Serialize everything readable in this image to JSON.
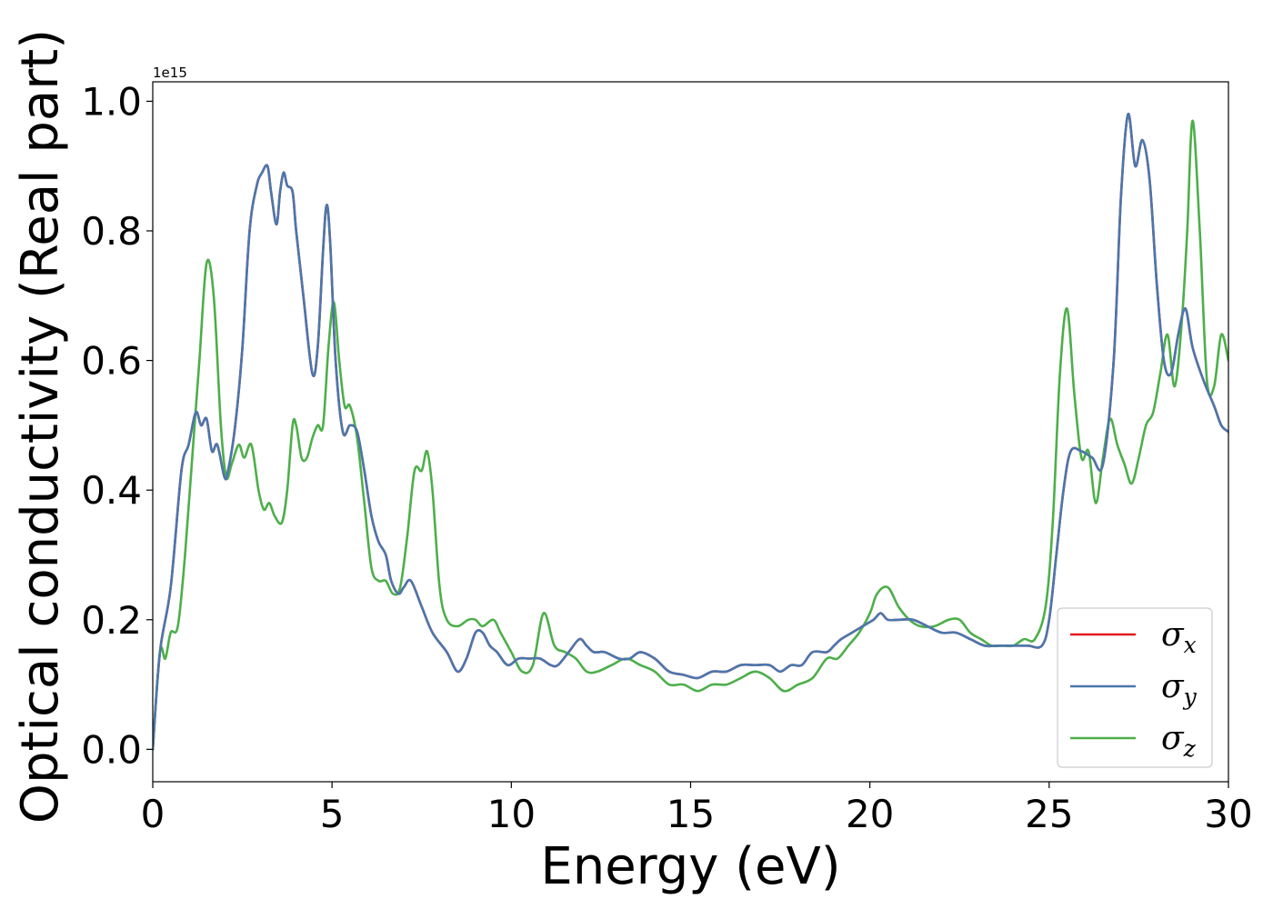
{
  "chart_data": {
    "type": "line",
    "xlabel": "Energy (eV)",
    "ylabel": "Optical conductivity (Real part)",
    "y_offset_text": "1e15",
    "y_scale": 1000000000000000.0,
    "xlim": [
      0,
      30
    ],
    "ylim": [
      -0.05,
      1.03
    ],
    "xticks": [
      0,
      5,
      10,
      15,
      20,
      25,
      30
    ],
    "yticks": [
      0.0,
      0.2,
      0.4,
      0.6,
      0.8,
      1.0
    ],
    "xtick_labels": [
      "0",
      "5",
      "10",
      "15",
      "20",
      "25",
      "30"
    ],
    "ytick_labels": [
      "0.0",
      "0.2",
      "0.4",
      "0.6",
      "0.8",
      "1.0"
    ],
    "grid": false,
    "legend_position": "lower-right",
    "series": [
      {
        "name": "σx",
        "base": "σ",
        "sub": "x",
        "color": "#e41a1c",
        "x": [
          0,
          0.2,
          0.5,
          0.8,
          1.0,
          1.2,
          1.35,
          1.5,
          1.65,
          1.8,
          2.0,
          2.1,
          2.3,
          2.5,
          2.7,
          2.9,
          3.05,
          3.2,
          3.3,
          3.45,
          3.55,
          3.65,
          3.75,
          3.9,
          4.0,
          4.2,
          4.45,
          4.6,
          4.75,
          4.85,
          4.95,
          5.1,
          5.3,
          5.5,
          5.7,
          5.9,
          6.1,
          6.3,
          6.5,
          6.65,
          6.85,
          7.0,
          7.2,
          7.5,
          7.8,
          8.2,
          8.5,
          8.75,
          9.0,
          9.2,
          9.4,
          9.6,
          9.9,
          10.2,
          10.5,
          10.8,
          11.1,
          11.3,
          11.6,
          11.9,
          12.1,
          12.3,
          12.6,
          13.0,
          13.3,
          13.6,
          14.0,
          14.4,
          14.8,
          15.2,
          15.6,
          16.0,
          16.4,
          16.8,
          17.2,
          17.5,
          17.8,
          18.1,
          18.4,
          18.8,
          19.0,
          19.2,
          19.5,
          19.8,
          20.1,
          20.3,
          20.5,
          20.8,
          21.2,
          21.6,
          22.0,
          22.4,
          22.8,
          23.2,
          23.6,
          24.0,
          24.4,
          24.8,
          25.0,
          25.2,
          25.4,
          25.6,
          25.9,
          26.2,
          26.5,
          26.8,
          27.0,
          27.2,
          27.4,
          27.6,
          27.8,
          28.0,
          28.2,
          28.4,
          28.6,
          28.8,
          29.0,
          29.3,
          29.6,
          29.8,
          30.0
        ],
        "values": [
          0.0,
          0.15,
          0.25,
          0.43,
          0.47,
          0.52,
          0.5,
          0.51,
          0.46,
          0.47,
          0.42,
          0.43,
          0.5,
          0.62,
          0.8,
          0.87,
          0.89,
          0.9,
          0.86,
          0.81,
          0.86,
          0.89,
          0.87,
          0.86,
          0.8,
          0.7,
          0.58,
          0.62,
          0.77,
          0.84,
          0.78,
          0.6,
          0.49,
          0.5,
          0.49,
          0.43,
          0.36,
          0.32,
          0.3,
          0.26,
          0.24,
          0.25,
          0.26,
          0.22,
          0.18,
          0.15,
          0.12,
          0.14,
          0.18,
          0.18,
          0.16,
          0.15,
          0.13,
          0.14,
          0.14,
          0.14,
          0.13,
          0.13,
          0.15,
          0.17,
          0.16,
          0.15,
          0.15,
          0.14,
          0.14,
          0.15,
          0.14,
          0.12,
          0.115,
          0.11,
          0.12,
          0.12,
          0.13,
          0.13,
          0.13,
          0.12,
          0.13,
          0.13,
          0.15,
          0.15,
          0.16,
          0.17,
          0.18,
          0.19,
          0.2,
          0.21,
          0.2,
          0.2,
          0.2,
          0.19,
          0.18,
          0.18,
          0.17,
          0.16,
          0.16,
          0.16,
          0.16,
          0.16,
          0.2,
          0.3,
          0.4,
          0.46,
          0.46,
          0.45,
          0.44,
          0.6,
          0.85,
          0.98,
          0.9,
          0.94,
          0.88,
          0.72,
          0.6,
          0.58,
          0.64,
          0.68,
          0.62,
          0.57,
          0.53,
          0.5,
          0.49
        ]
      },
      {
        "name": "σy",
        "base": "σ",
        "sub": "y",
        "color": "#4a77ad",
        "x": [
          0,
          0.2,
          0.5,
          0.8,
          1.0,
          1.2,
          1.35,
          1.5,
          1.65,
          1.8,
          2.0,
          2.1,
          2.3,
          2.5,
          2.7,
          2.9,
          3.05,
          3.2,
          3.3,
          3.45,
          3.55,
          3.65,
          3.75,
          3.9,
          4.0,
          4.2,
          4.45,
          4.6,
          4.75,
          4.85,
          4.95,
          5.1,
          5.3,
          5.5,
          5.7,
          5.9,
          6.1,
          6.3,
          6.5,
          6.65,
          6.85,
          7.0,
          7.2,
          7.5,
          7.8,
          8.2,
          8.5,
          8.75,
          9.0,
          9.2,
          9.4,
          9.6,
          9.9,
          10.2,
          10.5,
          10.8,
          11.1,
          11.3,
          11.6,
          11.9,
          12.1,
          12.3,
          12.6,
          13.0,
          13.3,
          13.6,
          14.0,
          14.4,
          14.8,
          15.2,
          15.6,
          16.0,
          16.4,
          16.8,
          17.2,
          17.5,
          17.8,
          18.1,
          18.4,
          18.8,
          19.0,
          19.2,
          19.5,
          19.8,
          20.1,
          20.3,
          20.5,
          20.8,
          21.2,
          21.6,
          22.0,
          22.4,
          22.8,
          23.2,
          23.6,
          24.0,
          24.4,
          24.8,
          25.0,
          25.2,
          25.4,
          25.6,
          25.9,
          26.2,
          26.5,
          26.8,
          27.0,
          27.2,
          27.4,
          27.6,
          27.8,
          28.0,
          28.2,
          28.4,
          28.6,
          28.8,
          29.0,
          29.3,
          29.6,
          29.8,
          30.0
        ],
        "values": [
          0.0,
          0.15,
          0.25,
          0.43,
          0.47,
          0.52,
          0.5,
          0.51,
          0.46,
          0.47,
          0.42,
          0.43,
          0.5,
          0.62,
          0.8,
          0.87,
          0.89,
          0.9,
          0.86,
          0.81,
          0.86,
          0.89,
          0.87,
          0.86,
          0.8,
          0.7,
          0.58,
          0.62,
          0.77,
          0.84,
          0.78,
          0.6,
          0.49,
          0.5,
          0.49,
          0.43,
          0.36,
          0.32,
          0.3,
          0.26,
          0.24,
          0.25,
          0.26,
          0.22,
          0.18,
          0.15,
          0.12,
          0.14,
          0.18,
          0.18,
          0.16,
          0.15,
          0.13,
          0.14,
          0.14,
          0.14,
          0.13,
          0.13,
          0.15,
          0.17,
          0.16,
          0.15,
          0.15,
          0.14,
          0.14,
          0.15,
          0.14,
          0.12,
          0.115,
          0.11,
          0.12,
          0.12,
          0.13,
          0.13,
          0.13,
          0.12,
          0.13,
          0.13,
          0.15,
          0.15,
          0.16,
          0.17,
          0.18,
          0.19,
          0.2,
          0.21,
          0.2,
          0.2,
          0.2,
          0.19,
          0.18,
          0.18,
          0.17,
          0.16,
          0.16,
          0.16,
          0.16,
          0.16,
          0.2,
          0.3,
          0.4,
          0.46,
          0.46,
          0.45,
          0.44,
          0.6,
          0.85,
          0.98,
          0.9,
          0.94,
          0.88,
          0.72,
          0.6,
          0.58,
          0.64,
          0.68,
          0.62,
          0.57,
          0.53,
          0.5,
          0.49
        ]
      },
      {
        "name": "σz",
        "base": "σ",
        "sub": "z",
        "color": "#4daf4a",
        "x": [
          0,
          0.2,
          0.35,
          0.5,
          0.7,
          0.9,
          1.1,
          1.3,
          1.5,
          1.7,
          1.9,
          2.05,
          2.2,
          2.4,
          2.55,
          2.75,
          2.95,
          3.1,
          3.25,
          3.4,
          3.6,
          3.75,
          3.9,
          4.0,
          4.15,
          4.3,
          4.45,
          4.6,
          4.75,
          4.9,
          5.05,
          5.2,
          5.35,
          5.5,
          5.7,
          5.9,
          6.1,
          6.3,
          6.5,
          6.7,
          6.9,
          7.1,
          7.3,
          7.5,
          7.65,
          7.8,
          8.0,
          8.2,
          8.5,
          8.8,
          9.0,
          9.2,
          9.5,
          9.7,
          10.0,
          10.3,
          10.6,
          10.9,
          11.2,
          11.5,
          11.8,
          12.1,
          12.4,
          12.8,
          13.2,
          13.6,
          14.0,
          14.4,
          14.8,
          15.2,
          15.6,
          16.0,
          16.4,
          16.8,
          17.2,
          17.6,
          18.0,
          18.4,
          18.8,
          19.1,
          19.4,
          19.7,
          20.0,
          20.2,
          20.5,
          20.8,
          21.1,
          21.4,
          21.8,
          22.2,
          22.5,
          22.8,
          23.1,
          23.4,
          23.7,
          24.0,
          24.3,
          24.6,
          24.9,
          25.1,
          25.3,
          25.5,
          25.7,
          25.9,
          26.1,
          26.3,
          26.5,
          26.7,
          26.9,
          27.1,
          27.3,
          27.5,
          27.7,
          27.9,
          28.1,
          28.3,
          28.5,
          28.7,
          28.85,
          29.0,
          29.2,
          29.4,
          29.6,
          29.8,
          30.0
        ],
        "values": [
          0.0,
          0.15,
          0.14,
          0.18,
          0.19,
          0.3,
          0.45,
          0.6,
          0.75,
          0.7,
          0.5,
          0.42,
          0.44,
          0.47,
          0.45,
          0.47,
          0.4,
          0.37,
          0.38,
          0.36,
          0.35,
          0.4,
          0.5,
          0.5,
          0.45,
          0.45,
          0.48,
          0.5,
          0.5,
          0.62,
          0.69,
          0.6,
          0.53,
          0.53,
          0.48,
          0.38,
          0.28,
          0.26,
          0.26,
          0.24,
          0.25,
          0.33,
          0.43,
          0.43,
          0.46,
          0.4,
          0.25,
          0.2,
          0.19,
          0.2,
          0.2,
          0.19,
          0.2,
          0.18,
          0.15,
          0.12,
          0.13,
          0.21,
          0.16,
          0.15,
          0.14,
          0.12,
          0.12,
          0.13,
          0.14,
          0.13,
          0.12,
          0.1,
          0.1,
          0.09,
          0.1,
          0.1,
          0.11,
          0.12,
          0.11,
          0.09,
          0.1,
          0.11,
          0.14,
          0.14,
          0.16,
          0.18,
          0.21,
          0.24,
          0.25,
          0.22,
          0.2,
          0.19,
          0.19,
          0.2,
          0.2,
          0.18,
          0.17,
          0.16,
          0.16,
          0.16,
          0.17,
          0.17,
          0.22,
          0.35,
          0.58,
          0.68,
          0.55,
          0.45,
          0.46,
          0.38,
          0.45,
          0.51,
          0.47,
          0.44,
          0.41,
          0.45,
          0.5,
          0.52,
          0.58,
          0.64,
          0.56,
          0.66,
          0.8,
          0.97,
          0.8,
          0.57,
          0.56,
          0.64,
          0.6
        ]
      }
    ]
  }
}
